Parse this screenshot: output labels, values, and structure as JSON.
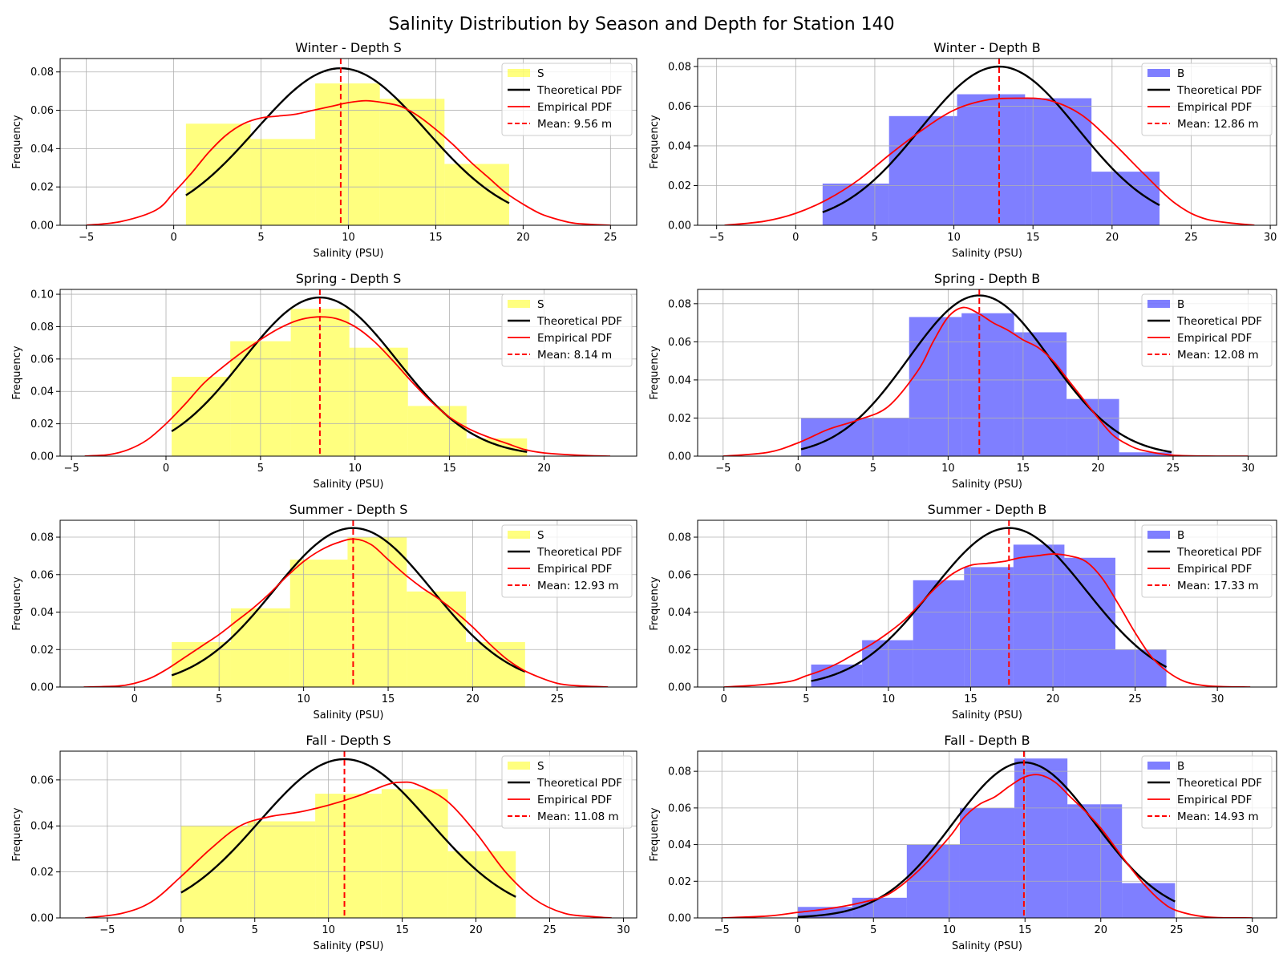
{
  "figure": {
    "title": "Salinity Distribution by Season and Depth for Station 140"
  },
  "colors": {
    "S": "#ffff00",
    "B": "#0000ff",
    "theoretical": "#000000",
    "empirical": "#ff0000",
    "mean": "#ff0000",
    "grid": "#b0b0b0"
  },
  "chart_data": [
    {
      "type": "bar",
      "title": "Winter - Depth S",
      "xlabel": "Salinity (PSU)",
      "ylabel": "Frequency",
      "xlim": [
        -6.5,
        26.5
      ],
      "ylim": [
        0,
        0.087
      ],
      "xticks": [
        -5,
        0,
        5,
        10,
        15,
        20,
        25
      ],
      "xtick_labels": [
        "−5",
        "0",
        "5",
        "10",
        "15",
        "20",
        "25"
      ],
      "yticks": [
        0,
        0.02,
        0.04,
        0.06,
        0.08
      ],
      "ytick_labels": [
        "0.00",
        "0.02",
        "0.04",
        "0.06",
        "0.08"
      ],
      "grid": true,
      "legend_position": "upper right",
      "hist": {
        "name": "S",
        "edges": [
          0.7,
          4.4,
          8.1,
          11.8,
          15.5,
          19.2
        ],
        "values": [
          0.053,
          0.045,
          0.074,
          0.066,
          0.032
        ]
      },
      "theoretical": {
        "name": "Theoretical PDF",
        "mean": 9.56,
        "sd": 4.87,
        "range": [
          0.7,
          19.2
        ]
      },
      "empirical": {
        "name": "Empirical PDF",
        "x": [
          -5,
          -3,
          -1,
          0,
          1,
          2,
          3,
          4,
          5,
          6,
          7,
          8,
          9,
          10,
          11,
          12,
          13,
          14,
          15,
          16,
          17,
          18,
          19,
          20,
          21,
          22,
          23,
          25
        ],
        "y": [
          0,
          0.002,
          0.008,
          0.017,
          0.027,
          0.038,
          0.047,
          0.053,
          0.056,
          0.057,
          0.058,
          0.06,
          0.062,
          0.064,
          0.065,
          0.064,
          0.062,
          0.057,
          0.05,
          0.042,
          0.033,
          0.025,
          0.017,
          0.011,
          0.006,
          0.003,
          0.001,
          0
        ]
      },
      "mean_line": {
        "value": 9.56,
        "label": "Mean: 9.56 m"
      }
    },
    {
      "type": "bar",
      "title": "Winter - Depth B",
      "xlabel": "Salinity (PSU)",
      "ylabel": "Frequency",
      "xlim": [
        -6.2,
        30.4
      ],
      "ylim": [
        0,
        0.084
      ],
      "xticks": [
        -5,
        0,
        5,
        10,
        15,
        20,
        25,
        30
      ],
      "xtick_labels": [
        "−5",
        "0",
        "5",
        "10",
        "15",
        "20",
        "25",
        "30"
      ],
      "yticks": [
        0,
        0.02,
        0.04,
        0.06,
        0.08
      ],
      "ytick_labels": [
        "0.00",
        "0.02",
        "0.04",
        "0.06",
        "0.08"
      ],
      "grid": true,
      "legend_position": "upper right",
      "hist": {
        "name": "B",
        "edges": [
          1.7,
          5.9,
          10.2,
          14.5,
          18.7,
          23.0
        ],
        "values": [
          0.021,
          0.055,
          0.066,
          0.064,
          0.027
        ]
      },
      "theoretical": {
        "name": "Theoretical PDF",
        "mean": 12.86,
        "sd": 4.99,
        "range": [
          1.7,
          23.0
        ]
      },
      "empirical": {
        "name": "Empirical PDF",
        "x": [
          -4.5,
          -2,
          0,
          2,
          4,
          6,
          8,
          10,
          12,
          14,
          16,
          18,
          20,
          22,
          24,
          26,
          29
        ],
        "y": [
          0,
          0.002,
          0.006,
          0.013,
          0.023,
          0.036,
          0.048,
          0.058,
          0.063,
          0.064,
          0.063,
          0.056,
          0.042,
          0.026,
          0.011,
          0.003,
          0
        ]
      },
      "mean_line": {
        "value": 12.86,
        "label": "Mean: 12.86 m"
      }
    },
    {
      "type": "bar",
      "title": "Spring - Depth S",
      "xlabel": "Salinity (PSU)",
      "ylabel": "Frequency",
      "xlim": [
        -5.6,
        24.9
      ],
      "ylim": [
        0,
        0.103
      ],
      "xticks": [
        -5,
        0,
        5,
        10,
        15,
        20
      ],
      "xtick_labels": [
        "−5",
        "0",
        "5",
        "10",
        "15",
        "20"
      ],
      "yticks": [
        0,
        0.02,
        0.04,
        0.06,
        0.08,
        0.1
      ],
      "ytick_labels": [
        "0.00",
        "0.02",
        "0.04",
        "0.06",
        "0.08",
        "0.10"
      ],
      "grid": true,
      "legend_position": "upper right",
      "hist": {
        "name": "S",
        "edges": [
          0.3,
          3.4,
          6.6,
          9.7,
          12.8,
          15.9,
          19.1
        ],
        "values": [
          0.049,
          0.071,
          0.091,
          0.067,
          0.031,
          0.011
        ]
      },
      "theoretical": {
        "name": "Theoretical PDF",
        "mean": 8.14,
        "sd": 4.07,
        "range": [
          0.3,
          19.1
        ]
      },
      "empirical": {
        "name": "Empirical PDF",
        "x": [
          -4.3,
          -3,
          -2,
          -1,
          0,
          1,
          2,
          3,
          4,
          5,
          6,
          7,
          8,
          9,
          10,
          11,
          12,
          13,
          14,
          15,
          16,
          17,
          18,
          19,
          20,
          22,
          23.5
        ],
        "y": [
          0,
          0.001,
          0.004,
          0.01,
          0.02,
          0.032,
          0.045,
          0.055,
          0.064,
          0.072,
          0.079,
          0.084,
          0.086,
          0.085,
          0.08,
          0.071,
          0.059,
          0.046,
          0.034,
          0.024,
          0.017,
          0.012,
          0.008,
          0.004,
          0.002,
          0.0005,
          0
        ]
      },
      "mean_line": {
        "value": 8.14,
        "label": "Mean: 8.14 m"
      }
    },
    {
      "type": "bar",
      "title": "Spring - Depth B",
      "xlabel": "Salinity (PSU)",
      "ylabel": "Frequency",
      "xlim": [
        -6.7,
        31.9
      ],
      "ylim": [
        0,
        0.0875
      ],
      "xticks": [
        -5,
        0,
        5,
        10,
        15,
        20,
        25,
        30
      ],
      "xtick_labels": [
        "−5",
        "0",
        "5",
        "10",
        "15",
        "20",
        "25",
        "30"
      ],
      "yticks": [
        0,
        0.02,
        0.04,
        0.06,
        0.08
      ],
      "ytick_labels": [
        "0.00",
        "0.02",
        "0.04",
        "0.06",
        "0.08"
      ],
      "grid": true,
      "legend_position": "upper right",
      "hist": {
        "name": "B",
        "edges": [
          0.2,
          7.4,
          10.9,
          14.4,
          17.9,
          21.4,
          24.9
        ],
        "values": [
          0.02,
          0.073,
          0.075,
          0.065,
          0.03,
          0.002
        ]
      },
      "theoretical": {
        "name": "Theoretical PDF",
        "mean": 12.08,
        "sd": 4.73,
        "range": [
          0.2,
          24.9
        ]
      },
      "empirical": {
        "name": "Empirical PDF",
        "x": [
          -5,
          -2,
          0,
          2,
          4,
          6,
          8,
          9,
          10,
          11,
          12,
          13,
          14,
          15,
          16,
          17,
          18,
          19,
          20,
          21,
          22,
          23,
          25,
          28,
          30
        ],
        "y": [
          0,
          0.002,
          0.007,
          0.014,
          0.019,
          0.026,
          0.045,
          0.06,
          0.073,
          0.078,
          0.075,
          0.07,
          0.066,
          0.061,
          0.057,
          0.05,
          0.04,
          0.03,
          0.02,
          0.011,
          0.006,
          0.003,
          0.0005,
          0,
          0
        ]
      },
      "mean_line": {
        "value": 12.08,
        "label": "Mean: 12.08 m"
      }
    },
    {
      "type": "bar",
      "title": "Summer - Depth S",
      "xlabel": "Salinity (PSU)",
      "ylabel": "Frequency",
      "xlim": [
        -4.4,
        29.7
      ],
      "ylim": [
        0,
        0.089
      ],
      "xticks": [
        0,
        5,
        10,
        15,
        20,
        25
      ],
      "xtick_labels": [
        "0",
        "5",
        "10",
        "15",
        "20",
        "25"
      ],
      "yticks": [
        0,
        0.02,
        0.04,
        0.06,
        0.08
      ],
      "ytick_labels": [
        "0.00",
        "0.02",
        "0.04",
        "0.06",
        "0.08"
      ],
      "grid": true,
      "legend_position": "upper right",
      "hist": {
        "name": "S",
        "edges": [
          2.2,
          5.7,
          9.2,
          12.6,
          16.1,
          19.6,
          23.1
        ],
        "values": [
          0.024,
          0.042,
          0.068,
          0.08,
          0.051,
          0.024
        ]
      },
      "theoretical": {
        "name": "Theoretical PDF",
        "mean": 12.93,
        "sd": 4.7,
        "range": [
          2.2,
          23.1
        ]
      },
      "empirical": {
        "name": "Empirical PDF",
        "x": [
          -3,
          -1,
          0,
          1,
          2,
          3,
          4,
          5,
          6,
          7,
          8,
          9,
          10,
          11,
          12,
          13,
          14,
          15,
          16,
          17,
          18,
          19,
          20,
          21,
          22,
          23,
          24,
          25,
          26,
          28
        ],
        "y": [
          0,
          0.0005,
          0.002,
          0.005,
          0.01,
          0.016,
          0.022,
          0.028,
          0.035,
          0.042,
          0.05,
          0.059,
          0.067,
          0.073,
          0.077,
          0.079,
          0.076,
          0.068,
          0.06,
          0.053,
          0.047,
          0.04,
          0.032,
          0.023,
          0.015,
          0.009,
          0.005,
          0.002,
          0.0008,
          0
        ]
      },
      "mean_line": {
        "value": 12.93,
        "label": "Mean: 12.93 m"
      }
    },
    {
      "type": "bar",
      "title": "Summer - Depth B",
      "xlabel": "Salinity (PSU)",
      "ylabel": "Frequency",
      "xlim": [
        -1.6,
        33.6
      ],
      "ylim": [
        0,
        0.089
      ],
      "xticks": [
        0,
        5,
        10,
        15,
        20,
        25,
        30
      ],
      "xtick_labels": [
        "0",
        "5",
        "10",
        "15",
        "20",
        "25",
        "30"
      ],
      "yticks": [
        0,
        0.02,
        0.04,
        0.06,
        0.08
      ],
      "ytick_labels": [
        "0.00",
        "0.02",
        "0.04",
        "0.06",
        "0.08"
      ],
      "grid": true,
      "legend_position": "upper right",
      "hist": {
        "name": "B",
        "edges": [
          5.3,
          8.4,
          11.5,
          14.6,
          17.6,
          20.7,
          23.8,
          26.9
        ],
        "values": [
          0.012,
          0.025,
          0.057,
          0.064,
          0.076,
          0.069,
          0.02
        ]
      },
      "theoretical": {
        "name": "Theoretical PDF",
        "mean": 17.33,
        "sd": 4.7,
        "range": [
          5.3,
          26.9
        ]
      },
      "empirical": {
        "name": "Empirical PDF",
        "x": [
          0,
          2,
          4,
          5,
          6,
          7,
          8,
          9,
          10,
          11,
          12,
          13,
          14,
          15,
          16,
          17,
          18,
          19,
          20,
          21,
          22,
          23,
          24,
          25,
          26,
          27,
          28,
          29,
          30,
          32
        ],
        "y": [
          0,
          0.001,
          0.003,
          0.006,
          0.009,
          0.013,
          0.018,
          0.023,
          0.029,
          0.036,
          0.045,
          0.054,
          0.061,
          0.065,
          0.066,
          0.067,
          0.069,
          0.07,
          0.071,
          0.07,
          0.067,
          0.058,
          0.044,
          0.029,
          0.016,
          0.008,
          0.003,
          0.001,
          0.0003,
          0
        ]
      },
      "mean_line": {
        "value": 17.33,
        "label": "Mean: 17.33 m"
      }
    },
    {
      "type": "bar",
      "title": "Fall - Depth S",
      "xlabel": "Salinity (PSU)",
      "ylabel": "Frequency",
      "xlim": [
        -8.2,
        30.9
      ],
      "ylim": [
        0,
        0.0725
      ],
      "xticks": [
        -5,
        0,
        5,
        10,
        15,
        20,
        25,
        30
      ],
      "xtick_labels": [
        "−5",
        "0",
        "5",
        "10",
        "15",
        "20",
        "25",
        "30"
      ],
      "yticks": [
        0,
        0.02,
        0.04,
        0.06
      ],
      "ytick_labels": [
        "0.00",
        "0.02",
        "0.04",
        "0.06"
      ],
      "grid": true,
      "legend_position": "upper right",
      "hist": {
        "name": "S",
        "edges": [
          0.0,
          4.5,
          9.1,
          13.6,
          18.1,
          22.7
        ],
        "values": [
          0.04,
          0.042,
          0.054,
          0.056,
          0.029
        ]
      },
      "theoretical": {
        "name": "Theoretical PDF",
        "mean": 11.08,
        "sd": 5.78,
        "range": [
          0.0,
          22.7
        ]
      },
      "empirical": {
        "name": "Empirical PDF",
        "x": [
          -6.5,
          -4,
          -2,
          0,
          2,
          4,
          6,
          8,
          10,
          12,
          14,
          15,
          16,
          18,
          20,
          22,
          24,
          26,
          28,
          29.2
        ],
        "y": [
          0,
          0.002,
          0.007,
          0.018,
          0.03,
          0.04,
          0.044,
          0.046,
          0.049,
          0.053,
          0.058,
          0.059,
          0.058,
          0.051,
          0.037,
          0.02,
          0.008,
          0.002,
          0.0005,
          0
        ]
      },
      "mean_line": {
        "value": 11.08,
        "label": "Mean: 11.08 m"
      }
    },
    {
      "type": "bar",
      "title": "Fall - Depth B",
      "xlabel": "Salinity (PSU)",
      "ylabel": "Frequency",
      "xlim": [
        -6.6,
        31.6
      ],
      "ylim": [
        0,
        0.091
      ],
      "xticks": [
        -5,
        0,
        5,
        10,
        15,
        20,
        25,
        30
      ],
      "xtick_labels": [
        "−5",
        "0",
        "5",
        "10",
        "15",
        "20",
        "25",
        "30"
      ],
      "yticks": [
        0,
        0.02,
        0.04,
        0.06,
        0.08
      ],
      "ytick_labels": [
        "0.00",
        "0.02",
        "0.04",
        "0.06",
        "0.08"
      ],
      "grid": true,
      "legend_position": "upper right",
      "hist": {
        "name": "B",
        "edges": [
          0.0,
          3.6,
          7.2,
          10.7,
          14.3,
          17.8,
          21.4,
          24.9
        ],
        "values": [
          0.006,
          0.011,
          0.04,
          0.06,
          0.087,
          0.062,
          0.019
        ]
      },
      "theoretical": {
        "name": "Theoretical PDF",
        "mean": 14.93,
        "sd": 4.7,
        "range": [
          0.0,
          24.9
        ]
      },
      "empirical": {
        "name": "Empirical PDF",
        "x": [
          -5,
          -2,
          0,
          2,
          4,
          6,
          8,
          10,
          11,
          12,
          13,
          14,
          15,
          16,
          17,
          18,
          19,
          20,
          21,
          22,
          23,
          24,
          25,
          27,
          30
        ],
        "y": [
          0,
          0.001,
          0.003,
          0.005,
          0.008,
          0.013,
          0.026,
          0.044,
          0.055,
          0.062,
          0.066,
          0.072,
          0.077,
          0.078,
          0.074,
          0.066,
          0.058,
          0.049,
          0.038,
          0.027,
          0.017,
          0.009,
          0.004,
          0.0005,
          0
        ]
      },
      "mean_line": {
        "value": 14.93,
        "label": "Mean: 14.93 m"
      }
    }
  ]
}
